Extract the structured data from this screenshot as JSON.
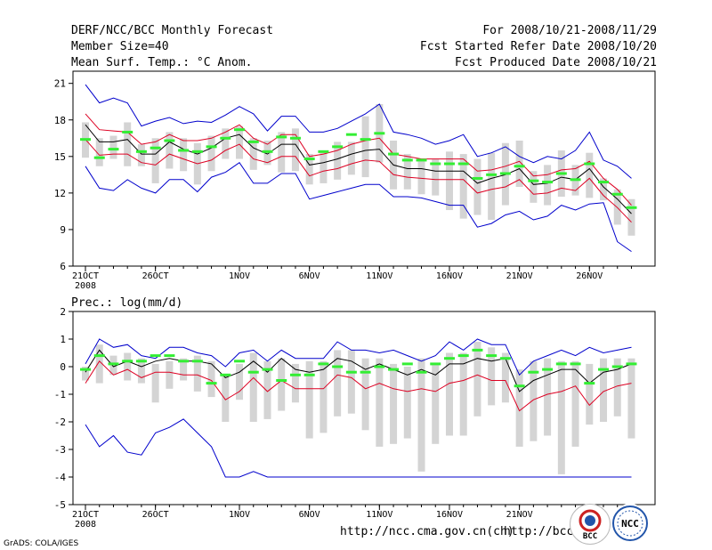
{
  "header": {
    "title": "DERF/NCC/BCC Monthly Forecast",
    "member_size": "Member Size=40",
    "variable": "Mean Surf. Temp.: °C Anom.",
    "period": "For 2008/10/21-2008/11/29",
    "started": "Fcst Started Refer Date 2008/10/20",
    "produced": "Fcst Produced Date 2008/10/21"
  },
  "footer": {
    "url1": "http://ncc.cma.gov.cn(ch)",
    "url2": "http://bcc.c",
    "credit": "GrADS: COLA/IGES",
    "logo_bcc": "BCC",
    "logo_ncc": "NCC"
  },
  "colors": {
    "max": "#0000cc",
    "p": "#dd0022",
    "mean": "#000000",
    "box": "#d4d4d4",
    "median": "#33ee33"
  },
  "chart_data": [
    {
      "type": "line",
      "title": "Mean Surf. Temp.: °C Anom.",
      "ylim": [
        6,
        22
      ],
      "yticks": [
        6,
        9,
        12,
        15,
        18,
        21
      ],
      "xticks": [
        {
          "day": 0,
          "label": "21OCT"
        },
        {
          "day": 5,
          "label": "26OCT"
        },
        {
          "day": 11,
          "label": "1NOV"
        },
        {
          "day": 16,
          "label": "6NOV"
        },
        {
          "day": 21,
          "label": "11NOV"
        },
        {
          "day": 26,
          "label": "16NOV"
        },
        {
          "day": 31,
          "label": "21NOV"
        },
        {
          "day": 36,
          "label": "26NOV"
        }
      ],
      "xsub_label": "2008",
      "series": [
        {
          "name": "max",
          "values": [
            20.9,
            19.4,
            19.8,
            19.4,
            17.5,
            17.9,
            18.2,
            17.7,
            17.9,
            17.8,
            18.4,
            19.1,
            18.5,
            17.1,
            18.3,
            18.3,
            17.0,
            17.0,
            17.3,
            17.9,
            18.5,
            19.3,
            17.0,
            16.8,
            16.5,
            16.0,
            16.3,
            16.8,
            15.0,
            15.3,
            15.8,
            15.0,
            14.5,
            15.0,
            14.8,
            15.5,
            17.0,
            14.7,
            14.2,
            13.2
          ]
        },
        {
          "name": "p_upper",
          "values": [
            18.5,
            17.2,
            17.1,
            17.0,
            16.0,
            16.2,
            16.8,
            16.3,
            16.3,
            16.5,
            17.0,
            17.6,
            16.5,
            16.0,
            16.8,
            16.8,
            15.0,
            15.2,
            15.5,
            16.0,
            16.3,
            16.5,
            15.2,
            15.0,
            14.8,
            14.8,
            14.8,
            14.8,
            13.8,
            13.9,
            14.2,
            14.6,
            13.4,
            13.5,
            13.9,
            14.0,
            14.6,
            13.2,
            12.3,
            11.0
          ]
        },
        {
          "name": "mean",
          "values": [
            17.6,
            16.2,
            16.2,
            16.4,
            15.2,
            15.2,
            16.2,
            15.6,
            15.2,
            15.7,
            16.5,
            16.8,
            15.7,
            15.2,
            16.0,
            16.0,
            14.3,
            14.5,
            14.8,
            15.2,
            15.5,
            15.6,
            14.3,
            14.0,
            14.0,
            13.8,
            13.8,
            13.8,
            12.8,
            13.2,
            13.5,
            14.0,
            12.7,
            12.8,
            13.3,
            13.1,
            14.0,
            12.5,
            11.5,
            10.3
          ]
        },
        {
          "name": "p_lower",
          "values": [
            16.4,
            15.1,
            15.2,
            15.2,
            14.5,
            14.3,
            15.2,
            14.8,
            14.4,
            14.7,
            15.5,
            16.0,
            14.8,
            14.5,
            15.0,
            15.0,
            13.4,
            13.8,
            14.0,
            14.4,
            14.7,
            14.6,
            13.5,
            13.3,
            13.2,
            13.1,
            13.1,
            13.1,
            12.0,
            12.3,
            12.5,
            13.1,
            11.9,
            12.0,
            12.4,
            12.2,
            13.2,
            11.8,
            10.8,
            9.6
          ]
        },
        {
          "name": "min",
          "values": [
            14.2,
            12.4,
            12.2,
            13.1,
            12.4,
            12.0,
            13.1,
            13.1,
            12.1,
            13.3,
            13.7,
            14.5,
            12.8,
            12.8,
            13.6,
            13.6,
            11.5,
            11.8,
            12.1,
            12.4,
            12.7,
            12.7,
            11.7,
            11.7,
            11.6,
            11.3,
            11.0,
            11.0,
            9.2,
            9.5,
            10.2,
            10.5,
            9.8,
            10.1,
            11.0,
            10.6,
            11.1,
            11.2,
            8.0,
            7.2
          ]
        },
        {
          "name": "box_high",
          "values": [
            17.8,
            16.5,
            16.7,
            17.8,
            16.0,
            16.5,
            17.0,
            16.5,
            16.1,
            16.7,
            17.3,
            17.5,
            16.5,
            16.3,
            17.0,
            17.3,
            15.2,
            15.4,
            16.2,
            16.2,
            18.3,
            19.3,
            16.3,
            15.2,
            14.8,
            14.8,
            15.4,
            15.2,
            14.8,
            15.3,
            16.1,
            16.3,
            13.8,
            14.3,
            15.5,
            14.3,
            15.3,
            13.2,
            12.3,
            11.5
          ]
        },
        {
          "name": "box_low",
          "values": [
            14.9,
            14.2,
            14.8,
            14.2,
            14.2,
            12.8,
            14.0,
            13.8,
            12.7,
            13.8,
            14.8,
            14.8,
            13.9,
            14.3,
            13.7,
            13.8,
            12.7,
            12.8,
            13.1,
            13.5,
            13.3,
            14.5,
            12.3,
            12.3,
            11.9,
            11.8,
            10.6,
            9.9,
            10.2,
            9.8,
            11.0,
            12.5,
            11.2,
            11.0,
            11.7,
            11.8,
            11.6,
            11.4,
            9.4,
            8.5
          ]
        },
        {
          "name": "median",
          "values": [
            16.4,
            14.9,
            15.6,
            17.0,
            15.4,
            15.7,
            16.3,
            15.5,
            15.4,
            15.8,
            16.5,
            17.2,
            16.2,
            15.4,
            16.6,
            16.5,
            14.8,
            15.4,
            15.8,
            16.8,
            16.4,
            16.9,
            15.2,
            14.7,
            14.7,
            14.4,
            14.4,
            14.4,
            13.2,
            13.5,
            13.6,
            14.2,
            13.0,
            12.9,
            13.6,
            13.1,
            14.4,
            12.9,
            11.9,
            10.8
          ]
        }
      ]
    },
    {
      "type": "line",
      "title": "Prec.: log(mm/d)",
      "ylim": [
        -5,
        2
      ],
      "yticks": [
        -5,
        -4,
        -3,
        -2,
        -1,
        0,
        1,
        2
      ],
      "xticks": [
        {
          "day": 0,
          "label": "21OCT"
        },
        {
          "day": 5,
          "label": "26OCT"
        },
        {
          "day": 11,
          "label": "1NOV"
        },
        {
          "day": 16,
          "label": "6NOV"
        },
        {
          "day": 21,
          "label": "11NOV"
        },
        {
          "day": 26,
          "label": "16NOV"
        },
        {
          "day": 31,
          "label": "21NOV"
        },
        {
          "day": 36,
          "label": "26NOV"
        }
      ],
      "xsub_label": "2008",
      "series": [
        {
          "name": "max",
          "values": [
            0.1,
            1.0,
            0.7,
            0.8,
            0.4,
            0.3,
            0.7,
            0.7,
            0.5,
            0.4,
            0.0,
            0.5,
            0.6,
            0.2,
            0.6,
            0.3,
            0.3,
            0.3,
            0.9,
            0.6,
            0.6,
            0.5,
            0.6,
            0.4,
            0.2,
            0.4,
            0.9,
            0.6,
            1.0,
            0.8,
            0.8,
            -0.3,
            0.2,
            0.4,
            0.6,
            0.4,
            0.7,
            0.5,
            0.6,
            0.7
          ]
        },
        {
          "name": "mean",
          "values": [
            -0.2,
            0.6,
            0.0,
            0.2,
            0.0,
            0.2,
            0.3,
            0.2,
            0.2,
            0.1,
            -0.4,
            -0.2,
            0.2,
            -0.2,
            0.3,
            -0.1,
            -0.2,
            -0.1,
            0.3,
            0.2,
            -0.1,
            0.1,
            -0.1,
            -0.3,
            -0.1,
            -0.3,
            0.1,
            0.1,
            0.3,
            0.2,
            0.3,
            -0.9,
            -0.5,
            -0.3,
            -0.1,
            -0.1,
            -0.6,
            -0.2,
            -0.1,
            0.1
          ]
        },
        {
          "name": "p_lower",
          "values": [
            -0.6,
            0.2,
            -0.3,
            -0.1,
            -0.4,
            -0.2,
            -0.2,
            -0.3,
            -0.3,
            -0.5,
            -1.2,
            -0.9,
            -0.4,
            -0.9,
            -0.5,
            -0.8,
            -0.8,
            -0.8,
            -0.3,
            -0.4,
            -0.8,
            -0.6,
            -0.8,
            -0.9,
            -0.8,
            -0.9,
            -0.6,
            -0.5,
            -0.3,
            -0.5,
            -0.5,
            -1.6,
            -1.2,
            -1.0,
            -0.9,
            -0.7,
            -1.4,
            -0.9,
            -0.7,
            -0.6
          ]
        },
        {
          "name": "min",
          "values": [
            -2.1,
            -2.9,
            -2.5,
            -3.1,
            -3.2,
            -2.4,
            -2.2,
            -1.9,
            -2.4,
            -2.9,
            -4.0,
            -4.0,
            -3.8,
            -4.0,
            -4.0,
            -4.0,
            -4.0,
            -4.0,
            -4.0,
            -4.0,
            -4.0,
            -4.0,
            -4.0,
            -4.0,
            -4.0,
            -4.0,
            -4.0,
            -4.0,
            -4.0,
            -4.0,
            -4.0,
            -4.0,
            -4.0,
            -4.0,
            -4.0,
            -4.0,
            -4.0,
            -4.0,
            -4.0,
            -4.0
          ]
        },
        {
          "name": "box_high",
          "values": [
            0.0,
            0.8,
            0.4,
            0.5,
            0.3,
            0.1,
            0.2,
            0.3,
            0.4,
            0.2,
            -0.3,
            0.1,
            0.5,
            0.2,
            0.3,
            0.1,
            0.2,
            0.2,
            0.6,
            0.6,
            0.3,
            0.3,
            0.1,
            0.0,
            0.3,
            0.1,
            0.5,
            0.5,
            0.9,
            0.7,
            0.5,
            -0.1,
            0.2,
            0.3,
            0.2,
            0.2,
            0.1,
            0.3,
            0.3,
            0.3
          ]
        },
        {
          "name": "box_low",
          "values": [
            -0.5,
            -0.6,
            -0.3,
            -0.5,
            -0.6,
            -1.3,
            -0.8,
            -0.5,
            -0.9,
            -1.1,
            -2.0,
            -1.2,
            -2.0,
            -1.9,
            -1.6,
            -1.3,
            -2.6,
            -2.4,
            -1.8,
            -1.7,
            -2.3,
            -2.9,
            -2.8,
            -2.6,
            -3.8,
            -2.8,
            -2.5,
            -2.5,
            -1.8,
            -1.4,
            -1.3,
            -2.9,
            -2.7,
            -2.5,
            -3.9,
            -2.9,
            -2.1,
            -2.0,
            -1.8,
            -2.6
          ]
        },
        {
          "name": "median",
          "values": [
            -0.1,
            0.4,
            0.1,
            0.2,
            0.2,
            0.4,
            0.4,
            0.2,
            0.2,
            -0.6,
            -0.3,
            0.2,
            -0.2,
            -0.1,
            -0.5,
            -0.3,
            -0.3,
            0.1,
            0.0,
            -0.2,
            -0.2,
            0.0,
            -0.1,
            0.1,
            -0.2,
            0.1,
            0.3,
            0.4,
            0.6,
            0.4,
            0.3,
            -0.7,
            -0.2,
            -0.1,
            0.1,
            0.1,
            -0.6,
            -0.1,
            0.0,
            0.1
          ]
        }
      ]
    }
  ]
}
